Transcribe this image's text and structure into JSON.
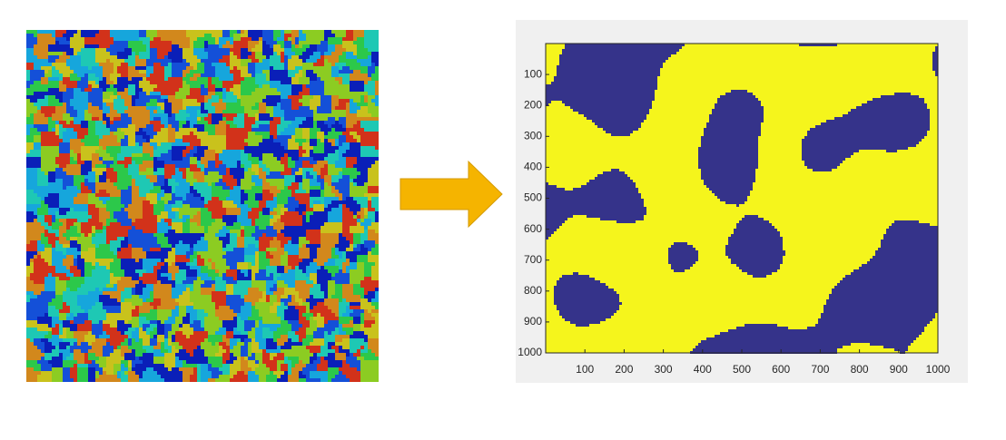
{
  "chart_data": {
    "type": "image",
    "xlim": [
      0,
      1000
    ],
    "ylim": [
      0,
      1000
    ],
    "y_reverse": true,
    "xticks": [
      100,
      200,
      300,
      400,
      500,
      600,
      700,
      800,
      900,
      1000
    ],
    "yticks": [
      100,
      200,
      300,
      400,
      500,
      600,
      700,
      800,
      900,
      1000
    ],
    "colors": [
      "#35338a",
      "#f5f51c"
    ]
  }
}
